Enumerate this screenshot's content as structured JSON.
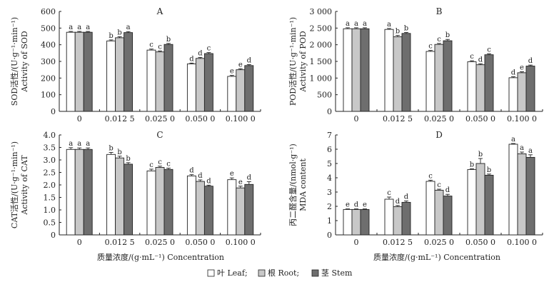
{
  "chart_data": [
    {
      "type": "bar",
      "panel": "A",
      "ylabel_cn": "SOD活性/(U·g⁻¹·min⁻¹)",
      "ylabel_en": "Activity of SOD",
      "ylim": [
        0,
        600
      ],
      "yticks": [
        "0",
        "100",
        "200",
        "300",
        "400",
        "500",
        "600"
      ],
      "categories": [
        "0",
        "0.012 5",
        "0.025 0",
        "0.050 0",
        "0.100 0"
      ],
      "series": [
        {
          "name": "Leaf",
          "values": [
            475,
            423,
            368,
            285,
            210
          ],
          "errors": [
            5,
            6,
            6,
            5,
            6
          ],
          "letters": [
            "a",
            "b",
            "c",
            "d",
            "e"
          ]
        },
        {
          "name": "Root",
          "values": [
            475,
            442,
            357,
            318,
            250
          ],
          "errors": [
            5,
            6,
            6,
            6,
            6
          ],
          "letters": [
            "a",
            "b",
            "c",
            "d",
            "e"
          ]
        },
        {
          "name": "Stem",
          "values": [
            475,
            473,
            402,
            347,
            275
          ],
          "errors": [
            5,
            6,
            6,
            6,
            6
          ],
          "letters": [
            "a",
            "a",
            "b",
            "c",
            "d"
          ]
        }
      ]
    },
    {
      "type": "bar",
      "panel": "B",
      "ylabel_cn": "POD活性/(U·g⁻¹·min⁻¹)",
      "ylabel_en": "Activity of POD",
      "ylim": [
        0,
        3000
      ],
      "yticks": [
        "0",
        "500",
        "1 000",
        "1 500",
        "2 000",
        "2 500",
        "3 000"
      ],
      "categories": [
        "0",
        "0.012 5",
        "0.025 0",
        "0.050 0",
        "0.100 0"
      ],
      "series": [
        {
          "name": "Leaf",
          "values": [
            2480,
            2460,
            1800,
            1490,
            1010
          ],
          "errors": [
            30,
            30,
            30,
            30,
            30
          ],
          "letters": [
            "a",
            "a",
            "c",
            "c",
            "d"
          ]
        },
        {
          "name": "Root",
          "values": [
            2480,
            2240,
            2010,
            1400,
            1160
          ],
          "errors": [
            30,
            40,
            30,
            30,
            30
          ],
          "letters": [
            "a",
            "b",
            "c",
            "d",
            "e"
          ]
        },
        {
          "name": "Stem",
          "values": [
            2480,
            2340,
            2120,
            1700,
            1360
          ],
          "errors": [
            30,
            30,
            40,
            30,
            30
          ],
          "letters": [
            "a",
            "b",
            "b",
            "c",
            "d"
          ]
        }
      ]
    },
    {
      "type": "bar",
      "panel": "C",
      "ylabel_cn": "CAT活性/(U·g⁻¹·min⁻¹)",
      "ylabel_en": "Activity of CAT",
      "ylim": [
        0,
        4.0
      ],
      "yticks": [
        "0",
        "0.5",
        "1.0",
        "1.5",
        "2.0",
        "2.5",
        "3.0",
        "3.5",
        "4.0"
      ],
      "categories": [
        "0",
        "0.012 5",
        "0.025 0",
        "0.050 0",
        "0.100 0"
      ],
      "series": [
        {
          "name": "Leaf",
          "values": [
            3.42,
            3.22,
            2.56,
            2.36,
            2.21
          ],
          "errors": [
            0.07,
            0.08,
            0.07,
            0.05,
            0.07
          ],
          "letters": [
            "a",
            "b",
            "c",
            "d",
            "e"
          ]
        },
        {
          "name": "Root",
          "values": [
            3.42,
            3.08,
            2.7,
            2.14,
            1.88
          ],
          "errors": [
            0.06,
            0.07,
            0.05,
            0.06,
            0.07
          ],
          "letters": [
            "a",
            "b",
            "c",
            "d",
            "e"
          ]
        },
        {
          "name": "Stem",
          "values": [
            3.42,
            2.83,
            2.62,
            1.95,
            2.02
          ],
          "errors": [
            0.06,
            0.06,
            0.05,
            0.04,
            0.11
          ],
          "letters": [
            "a",
            "b",
            "c",
            "d",
            "d"
          ]
        }
      ]
    },
    {
      "type": "bar",
      "panel": "D",
      "ylabel_cn": "丙二醛含量/(nmol·g⁻¹)",
      "ylabel_en": "MDA content",
      "ylim": [
        0,
        7
      ],
      "yticks": [
        "0",
        "1",
        "2",
        "3",
        "4",
        "5",
        "6",
        "7"
      ],
      "categories": [
        "0",
        "0.012 5",
        "0.025 0",
        "0.050 0",
        "0.100 0"
      ],
      "series": [
        {
          "name": "Leaf",
          "values": [
            1.78,
            2.5,
            3.75,
            4.58,
            6.35
          ],
          "errors": [
            0.04,
            0.15,
            0.08,
            0.05,
            0.05
          ],
          "letters": [
            "e",
            "c",
            "c",
            "b",
            "a"
          ]
        },
        {
          "name": "Root",
          "values": [
            1.78,
            1.98,
            3.13,
            5.0,
            5.68
          ],
          "errors": [
            0.04,
            0.08,
            0.07,
            0.35,
            0.12
          ],
          "letters": [
            "d",
            "d",
            "c",
            "b",
            "a"
          ]
        },
        {
          "name": "Stem",
          "values": [
            1.78,
            2.28,
            2.72,
            4.18,
            5.43
          ],
          "errors": [
            0.04,
            0.1,
            0.12,
            0.08,
            0.18
          ],
          "letters": [
            "e",
            "d",
            "d",
            "b",
            "a"
          ]
        }
      ]
    }
  ],
  "xlabel": "质量浓度/(g·mL⁻¹)  Concentration",
  "legend": [
    {
      "label": "叶 Leaf;",
      "color": "#ffffff"
    },
    {
      "label": "根 Root;",
      "color": "#c8c8c8"
    },
    {
      "label": "茎 Stem",
      "color": "#6e6e6e"
    }
  ],
  "series_colors": {
    "Leaf": "#ffffff",
    "Root": "#c8c8c8",
    "Stem": "#6e6e6e"
  },
  "stroke_color": "#222222"
}
